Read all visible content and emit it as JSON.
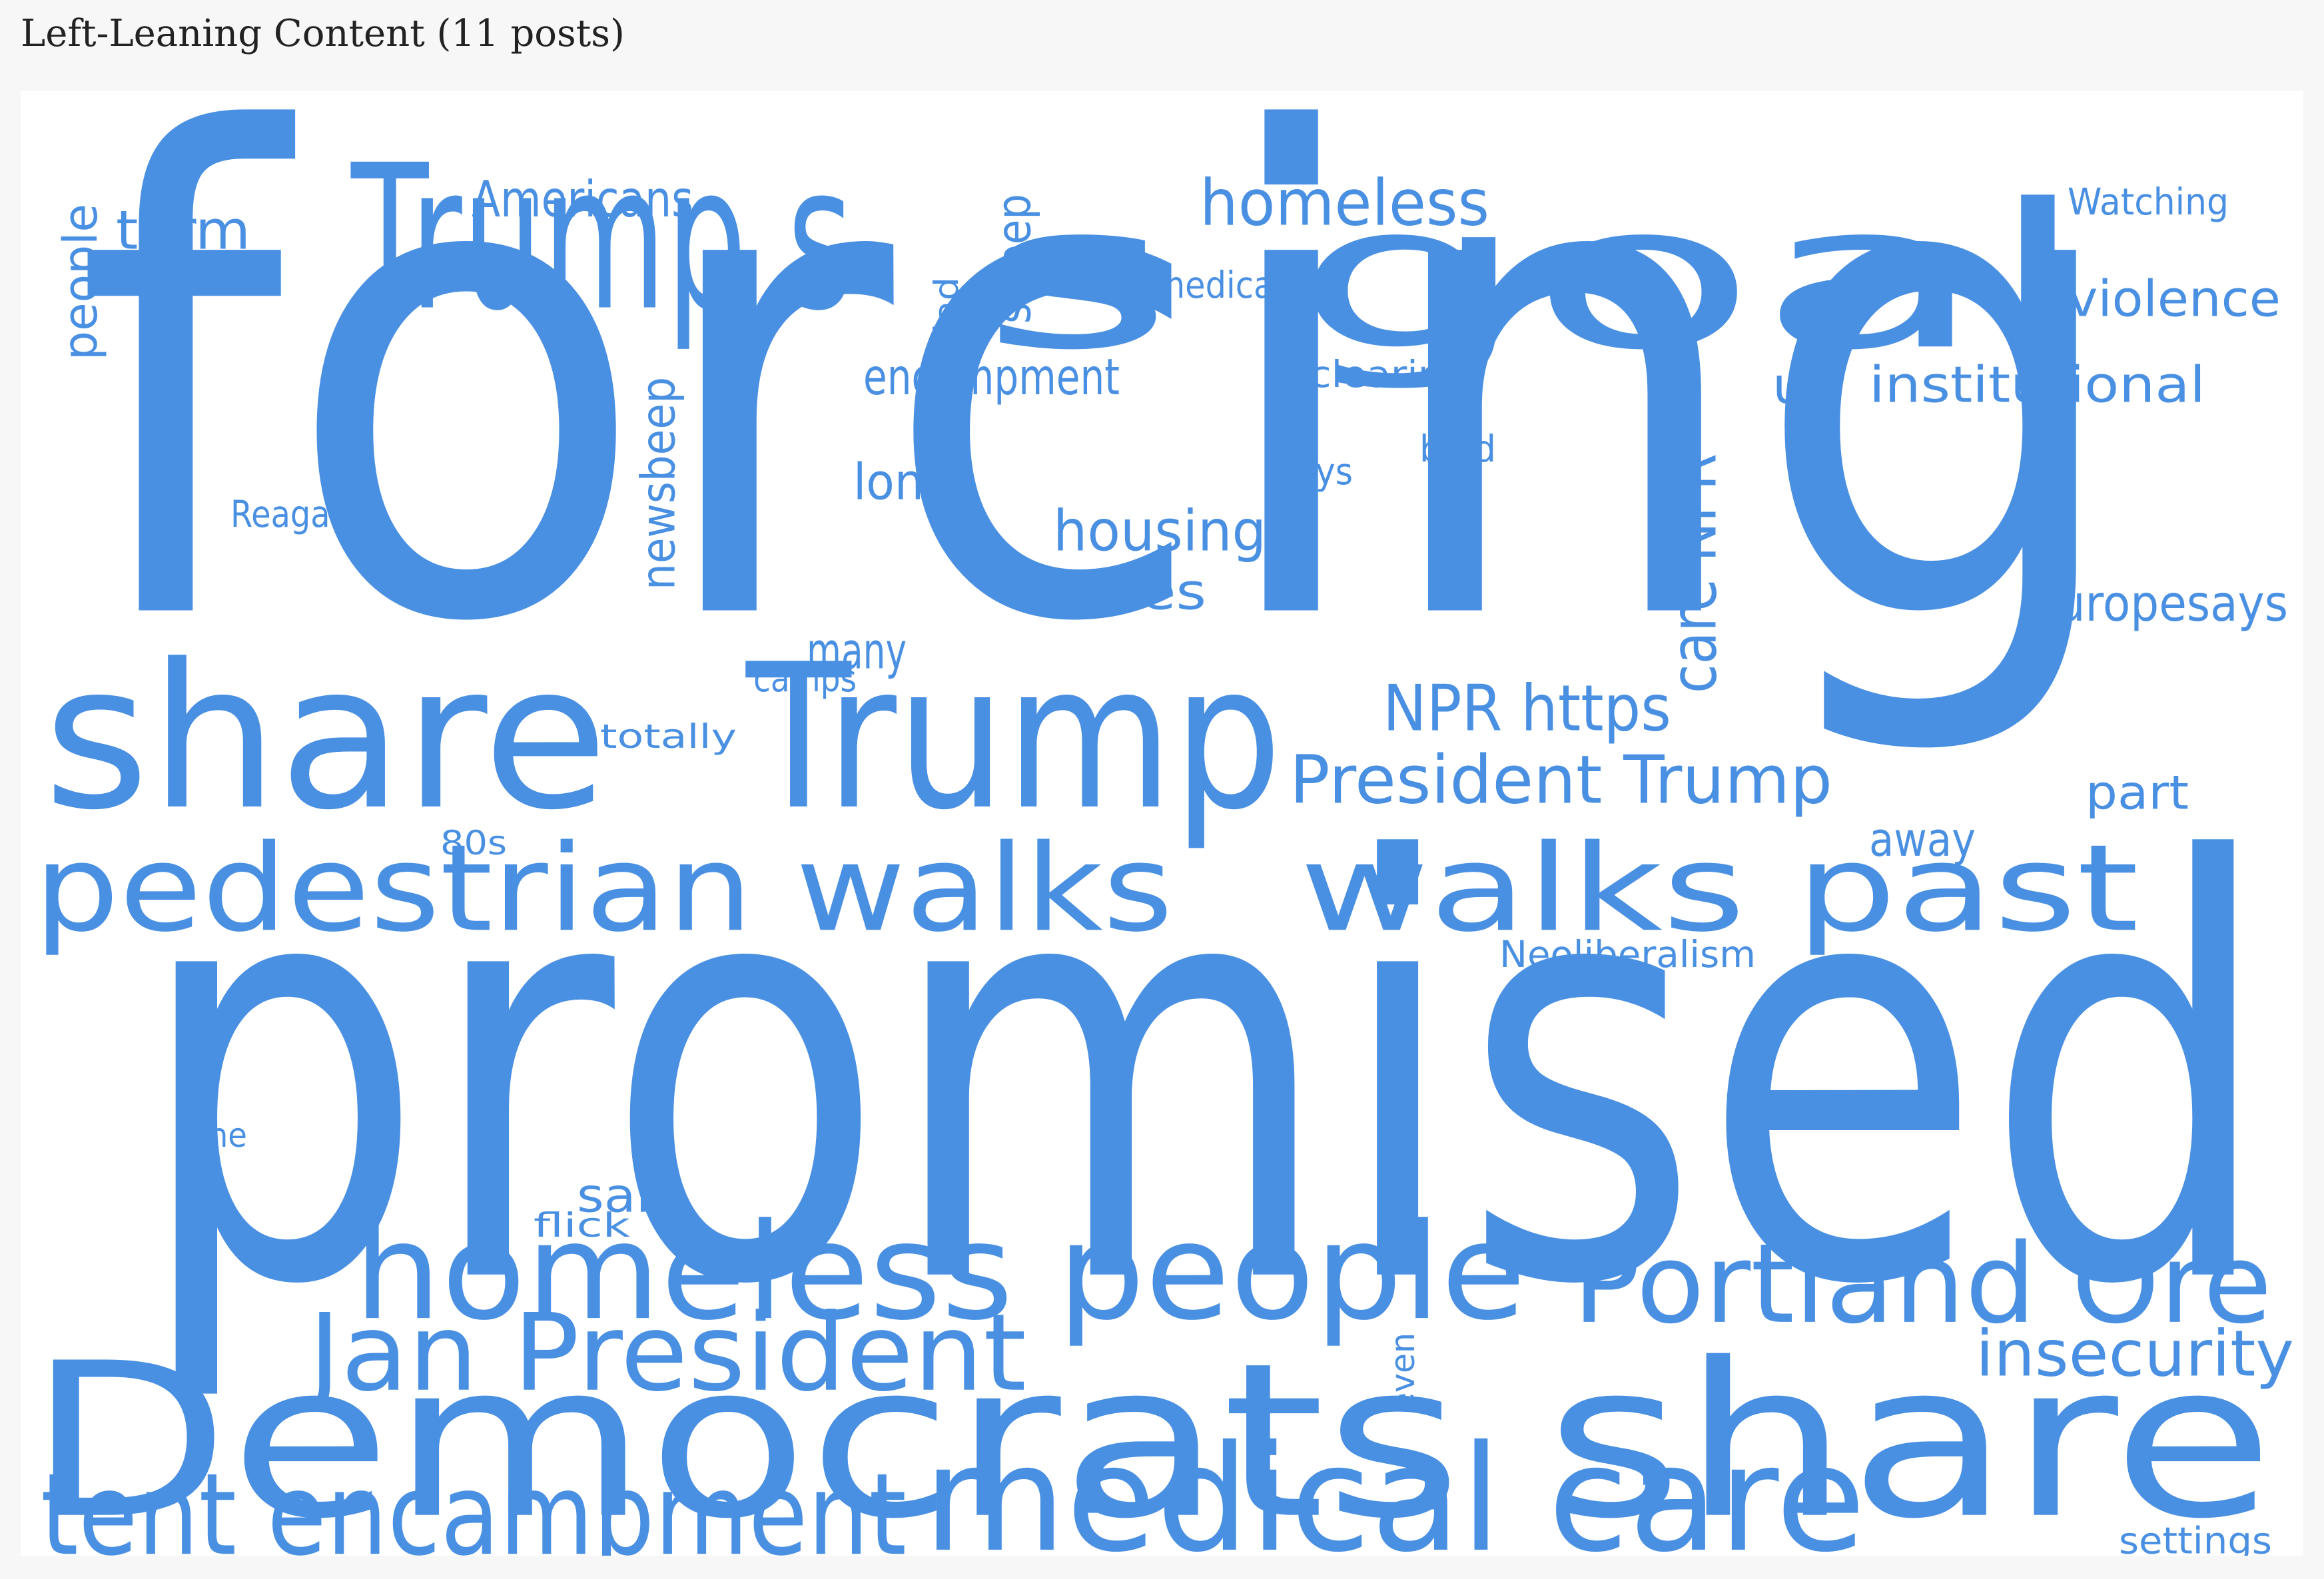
{
  "title": "Left-Leaning Content (11 posts)",
  "word_color": "#4a90e2",
  "words": [
    {
      "text": "forcing",
      "rot": false
    },
    {
      "text": "promised",
      "rot": false
    },
    {
      "text": "Democrats share",
      "rot": false
    },
    {
      "text": "Trump s",
      "rot": false
    },
    {
      "text": "s goal",
      "rot": false
    },
    {
      "text": "share",
      "rot": false
    },
    {
      "text": "Trump",
      "rot": false
    },
    {
      "text": "pedestrian walks",
      "rot": false
    },
    {
      "text": "walks past",
      "rot": false
    },
    {
      "text": "homeless people",
      "rot": false
    },
    {
      "text": "medical care",
      "rot": false
    },
    {
      "text": "Portland Ore",
      "rot": false
    },
    {
      "text": "tent encampment",
      "rot": false
    },
    {
      "text": "Jan President",
      "rot": false
    },
    {
      "text": "President Trump",
      "rot": false
    },
    {
      "text": "homeless",
      "rot": false
    },
    {
      "text": "NPR https",
      "rot": false
    },
    {
      "text": "care NPR",
      "rot": true
    },
    {
      "text": "insecurity",
      "rot": false
    },
    {
      "text": "housing",
      "rot": false
    },
    {
      "text": "violence",
      "rot": false
    },
    {
      "text": "europesays",
      "rot": false
    },
    {
      "text": "institutional",
      "rot": false
    },
    {
      "text": "encampment",
      "rot": false
    },
    {
      "text": "term",
      "rot": false
    },
    {
      "text": "Americans",
      "rot": false
    },
    {
      "text": "cities",
      "rot": false
    },
    {
      "text": "us",
      "rot": false
    },
    {
      "text": "many",
      "rot": false
    },
    {
      "text": "long",
      "rot": false
    },
    {
      "text": "newsbeep",
      "rot": true
    },
    {
      "text": "sweep",
      "rot": true
    },
    {
      "text": "people",
      "rot": true
    },
    {
      "text": "part",
      "rot": false
    },
    {
      "text": "said",
      "rot": false
    },
    {
      "text": "away",
      "rot": false
    },
    {
      "text": "medical",
      "rot": false
    },
    {
      "text": "Watching",
      "rot": false
    },
    {
      "text": "clearing",
      "rot": false
    },
    {
      "text": "Reagan",
      "rot": false
    },
    {
      "text": "totally",
      "rot": false
    },
    {
      "text": "guys",
      "rot": false
    },
    {
      "text": "bald",
      "rot": false
    },
    {
      "text": "camps",
      "rot": false
    },
    {
      "text": "glad",
      "rot": true
    },
    {
      "text": "80s",
      "rot": false
    },
    {
      "text": "Neoliberalism",
      "rot": false
    },
    {
      "text": "One",
      "rot": false
    },
    {
      "text": "flick",
      "rot": false
    },
    {
      "text": "even",
      "rot": true
    },
    {
      "text": "settings",
      "rot": false
    }
  ]
}
